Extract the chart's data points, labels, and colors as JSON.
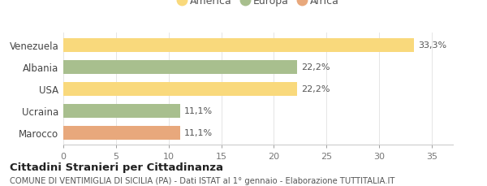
{
  "categories": [
    "Venezuela",
    "Albania",
    "USA",
    "Ucraina",
    "Marocco"
  ],
  "values": [
    33.3,
    22.2,
    22.2,
    11.1,
    11.1
  ],
  "labels": [
    "33,3%",
    "22,2%",
    "22,2%",
    "11,1%",
    "11,1%"
  ],
  "bar_colors": [
    "#f9d97c",
    "#a8bf8e",
    "#f9d97c",
    "#a8bf8e",
    "#e8a87c"
  ],
  "legend": [
    {
      "label": "America",
      "color": "#f9d97c"
    },
    {
      "label": "Europa",
      "color": "#a8bf8e"
    },
    {
      "label": "Africa",
      "color": "#e8a87c"
    }
  ],
  "xlim": [
    0,
    37
  ],
  "xticks": [
    0,
    5,
    10,
    15,
    20,
    25,
    30,
    35
  ],
  "title": "Cittadini Stranieri per Cittadinanza",
  "subtitle": "COMUNE DI VENTIMIGLIA DI SICILIA (PA) - Dati ISTAT al 1° gennaio - Elaborazione TUTTITALIA.IT",
  "background_color": "#ffffff"
}
